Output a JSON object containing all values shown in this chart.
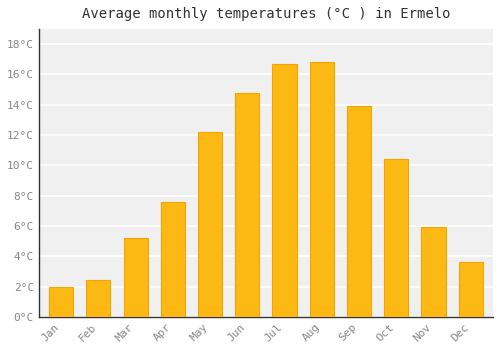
{
  "title": "Average monthly temperatures (°C ) in Ermelo",
  "months": [
    "Jan",
    "Feb",
    "Mar",
    "Apr",
    "May",
    "Jun",
    "Jul",
    "Aug",
    "Sep",
    "Oct",
    "Nov",
    "Dec"
  ],
  "values": [
    2.0,
    2.4,
    5.2,
    7.6,
    12.2,
    14.8,
    16.7,
    16.8,
    13.9,
    10.4,
    5.9,
    3.6
  ],
  "bar_color_face": "#FDB913",
  "bar_color_edge": "#F5A400",
  "ylim": [
    0,
    19
  ],
  "yticks": [
    0,
    2,
    4,
    6,
    8,
    10,
    12,
    14,
    16,
    18
  ],
  "ytick_labels": [
    "0°C",
    "2°C",
    "4°C",
    "6°C",
    "8°C",
    "10°C",
    "12°C",
    "14°C",
    "16°C",
    "18°C"
  ],
  "background_color": "#ffffff",
  "plot_bg_color": "#f0f0f0",
  "grid_color": "#ffffff",
  "axis_color": "#333333",
  "tick_color": "#888888",
  "title_fontsize": 10,
  "tick_fontsize": 8
}
